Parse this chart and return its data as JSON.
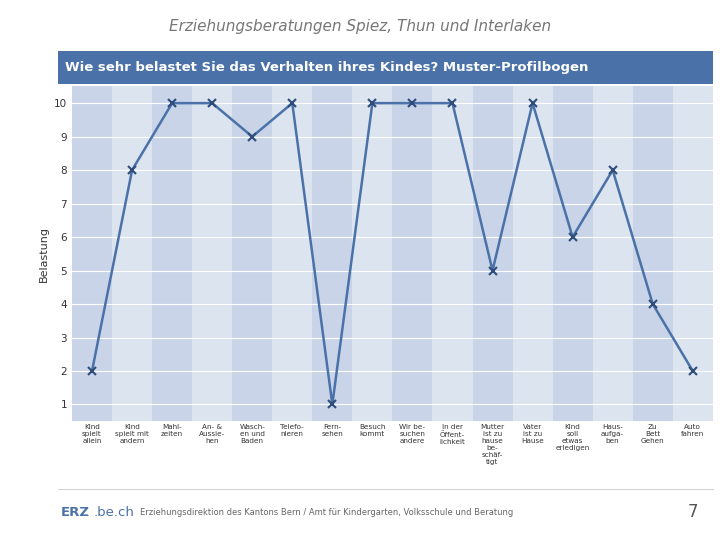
{
  "title": "Erziehungsberatungen Spiez, Thun und Interlaken",
  "subtitle": "Wie sehr belastet Sie das Verhalten ihres Kindes? Muster-Profilbogen",
  "ylabel": "Belastung",
  "values": [
    2,
    8,
    10,
    10,
    9,
    10,
    1,
    10,
    10,
    10,
    5,
    10,
    6,
    8,
    4,
    2
  ],
  "categories": [
    "Kind\nspielt\nallein",
    "Kind\nspielt mit\nandern",
    "Mahl-\nzeiten",
    "An- &\nAussie-\nhen",
    "Wasch-\nen und\nBaden",
    "Telefo-\nnieren",
    "Fern-\nsehen",
    "Besuch\nkommt",
    "Wir be-\nsuchen\nandere",
    "In der\nÖffent-\nlichkeit",
    "Mutter\nist zu\nhause\nbe-\nschäf-\ntigt",
    "Vater\nist zu\nHause",
    "Kind\nsoll\netwas\nerledigen",
    "Haus-\naufga-\nben",
    "Zu\nBett\nGehen",
    "Auto\nfahren"
  ],
  "line_color": "#4a72a8",
  "marker": "x",
  "marker_color": "#2e4d7b",
  "grid_color_odd": "#c9d4e8",
  "grid_color_even": "#dce4f0",
  "subtitle_bg": "#4a72a8",
  "subtitle_fg": "#ffffff",
  "yticks": [
    1,
    2,
    3,
    4,
    5,
    6,
    7,
    8,
    9,
    10
  ],
  "page_number": "7",
  "title_color": "#777777",
  "title_fontsize": 11,
  "subtitle_fontsize": 9.5,
  "ylabel_fontsize": 8
}
